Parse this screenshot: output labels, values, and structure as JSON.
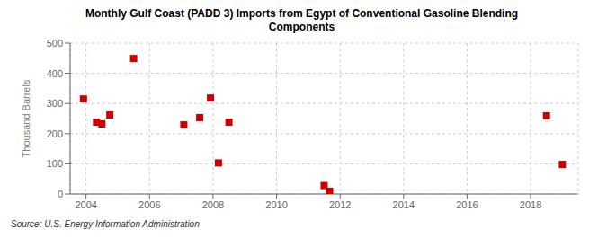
{
  "chart_data": {
    "type": "scatter",
    "title": "Monthly Gulf Coast (PADD 3) Imports from Egypt of Conventional Gasoline Blending\nComponents",
    "y_label": "Thousand Barrels",
    "source": "Source: U.S. Energy Information Administration",
    "x": [
      2003.92,
      2004.33,
      2004.5,
      2004.75,
      2005.5,
      2007.08,
      2007.58,
      2007.92,
      2008.17,
      2008.5,
      2011.5,
      2011.67,
      2018.5,
      2019.0
    ],
    "values": [
      315,
      238,
      232,
      262,
      449,
      229,
      253,
      318,
      103,
      238,
      28,
      9,
      259,
      98
    ],
    "color": "#cc0000",
    "marker": "square",
    "xlim": [
      2003.5,
      2019.5
    ],
    "ylim": [
      0,
      500
    ],
    "xticks": [
      2004,
      2006,
      2008,
      2010,
      2012,
      2014,
      2016,
      2018
    ],
    "yticks": [
      0,
      100,
      200,
      300,
      400,
      500
    ],
    "grid": true
  }
}
